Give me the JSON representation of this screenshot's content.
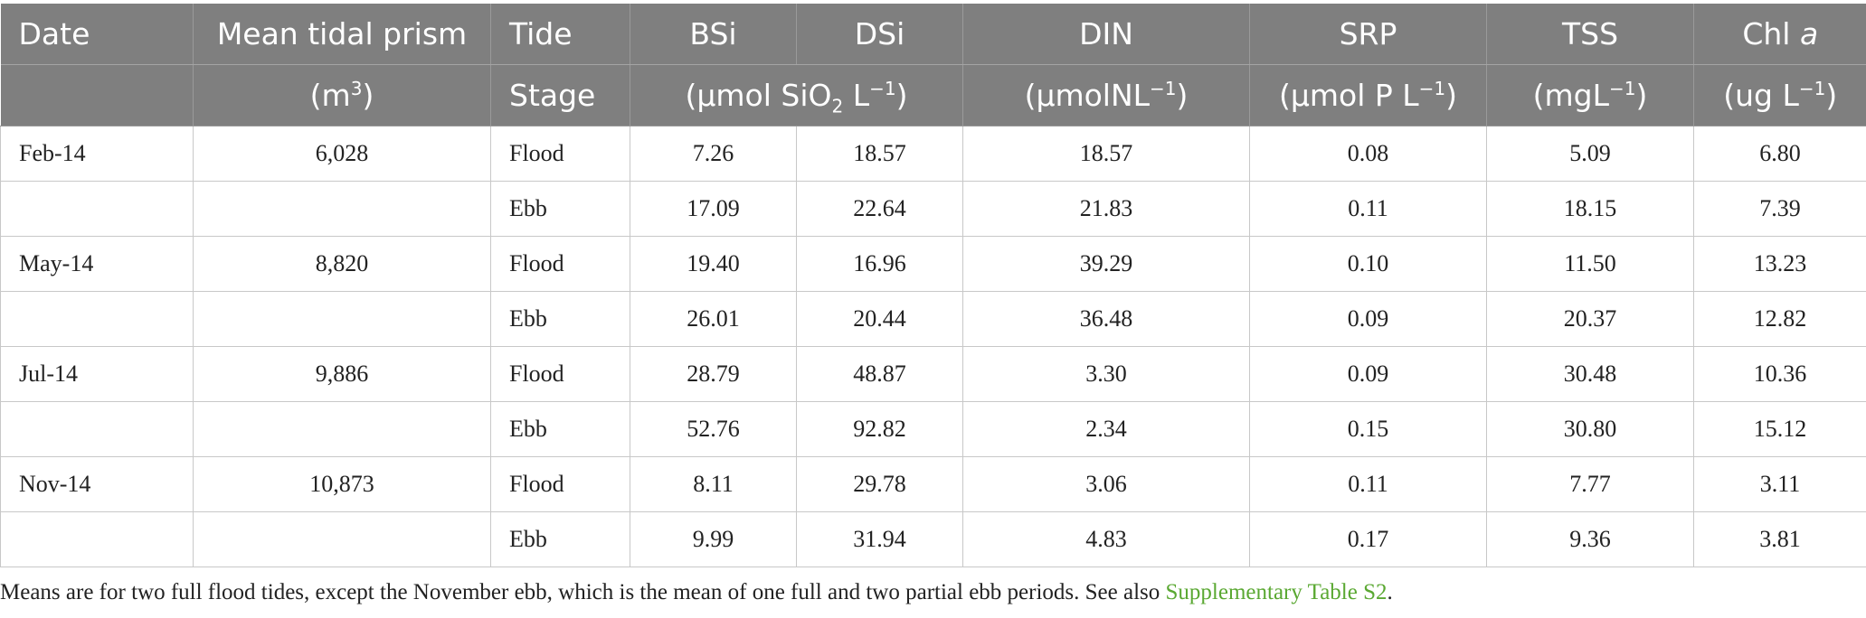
{
  "header": {
    "date": "Date",
    "mean_tidal_prism": "Mean tidal prism",
    "prism_unit_base": "(m",
    "prism_unit_sup": "3",
    "prism_unit_close": ")",
    "tide": "Tide",
    "stage": "Stage",
    "bsi": "BSi",
    "dsi": "DSi",
    "si_unit_base": "(µmol SiO",
    "si_unit_sub": "2",
    "si_unit_mid": " L",
    "si_unit_sup": "−1",
    "si_unit_close": ")",
    "din": "DIN",
    "din_unit_base": "(µmolNL",
    "din_unit_sup": "−1",
    "din_unit_close": ")",
    "srp": "SRP",
    "srp_unit_base": "(µmol P L",
    "srp_unit_sup": "−1",
    "srp_unit_close": ")",
    "tss": "TSS",
    "tss_unit_base": "(mgL",
    "tss_unit_sup": "−1",
    "tss_unit_close": ")",
    "chl": "Chl ",
    "chl_italic": "a",
    "chl_unit_base": "(ug L",
    "chl_unit_sup": "−1",
    "chl_unit_close": ")"
  },
  "rows": [
    {
      "date": "Feb-14",
      "prism": "6,028",
      "tide": "Flood",
      "bsi": "7.26",
      "dsi": "18.57",
      "din": "18.57",
      "srp": "0.08",
      "tss": "5.09",
      "chl": "6.80"
    },
    {
      "date": "",
      "prism": "",
      "tide": "Ebb",
      "bsi": "17.09",
      "dsi": "22.64",
      "din": "21.83",
      "srp": "0.11",
      "tss": "18.15",
      "chl": "7.39"
    },
    {
      "date": "May-14",
      "prism": "8,820",
      "tide": "Flood",
      "bsi": "19.40",
      "dsi": "16.96",
      "din": "39.29",
      "srp": "0.10",
      "tss": "11.50",
      "chl": "13.23"
    },
    {
      "date": "",
      "prism": "",
      "tide": "Ebb",
      "bsi": "26.01",
      "dsi": "20.44",
      "din": "36.48",
      "srp": "0.09",
      "tss": "20.37",
      "chl": "12.82"
    },
    {
      "date": "Jul-14",
      "prism": "9,886",
      "tide": "Flood",
      "bsi": "28.79",
      "dsi": "48.87",
      "din": "3.30",
      "srp": "0.09",
      "tss": "30.48",
      "chl": "10.36"
    },
    {
      "date": "",
      "prism": "",
      "tide": "Ebb",
      "bsi": "52.76",
      "dsi": "92.82",
      "din": "2.34",
      "srp": "0.15",
      "tss": "30.80",
      "chl": "15.12"
    },
    {
      "date": "Nov-14",
      "prism": "10,873",
      "tide": "Flood",
      "bsi": "8.11",
      "dsi": "29.78",
      "din": "3.06",
      "srp": "0.11",
      "tss": "7.77",
      "chl": "3.11"
    },
    {
      "date": "",
      "prism": "",
      "tide": "Ebb",
      "bsi": "9.99",
      "dsi": "31.94",
      "din": "4.83",
      "srp": "0.17",
      "tss": "9.36",
      "chl": "3.81"
    }
  ],
  "footnote": {
    "text": "Means are for two full flood tides, except the November ebb, which is the mean of one full and two partial ebb periods. See also ",
    "link": "Supplementary Table S2",
    "end": "."
  },
  "colors": {
    "header_bg": "#7f7f7f",
    "header_text": "#ffffff",
    "link": "#5aa832",
    "grid": "#c8c8c8"
  }
}
